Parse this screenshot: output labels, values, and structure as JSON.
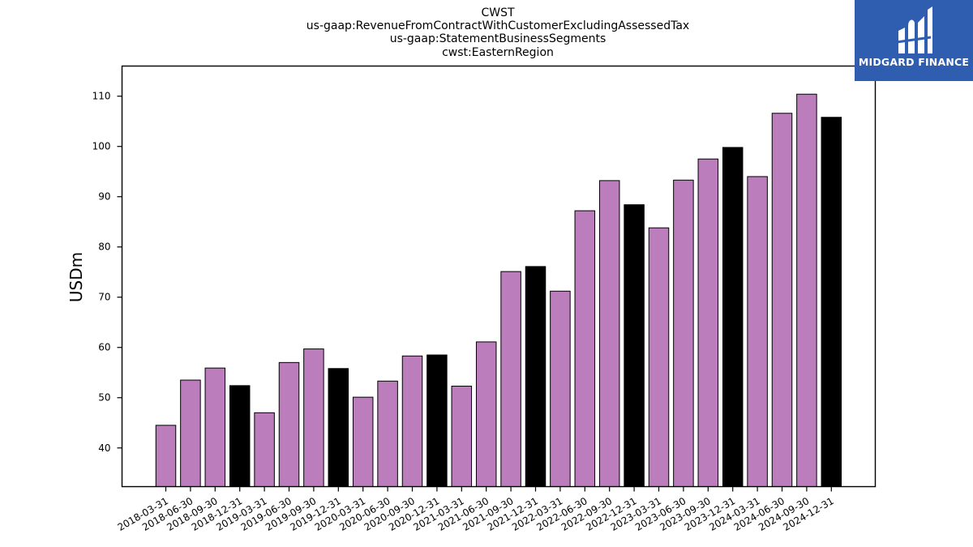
{
  "chart_data": {
    "type": "bar",
    "title_lines": [
      "CWST",
      "us-gaap:RevenueFromContractWithCustomerExcludingAssessedTax",
      "us-gaap:StatementBusinessSegments",
      "cwst:EasternRegion"
    ],
    "xlabel": "",
    "ylabel": "USDm",
    "ylim": [
      32.3,
      116
    ],
    "yticks": [
      40,
      50,
      60,
      70,
      80,
      90,
      100,
      110
    ],
    "grid": false,
    "categories": [
      "2018-03-31",
      "2018-06-30",
      "2018-09-30",
      "2018-12-31",
      "2019-03-31",
      "2019-06-30",
      "2019-09-30",
      "2019-12-31",
      "2020-03-31",
      "2020-06-30",
      "2020-09-30",
      "2020-12-31",
      "2021-03-31",
      "2021-06-30",
      "2021-09-30",
      "2021-12-31",
      "2022-03-31",
      "2022-06-30",
      "2022-09-30",
      "2022-12-31",
      "2023-03-31",
      "2023-06-30",
      "2023-09-30",
      "2023-12-31",
      "2024-03-31",
      "2024-06-30",
      "2024-09-30",
      "2024-12-31"
    ],
    "values": [
      44.5,
      53.5,
      55.9,
      52.4,
      47.0,
      57.0,
      59.7,
      55.8,
      50.1,
      53.3,
      58.3,
      58.5,
      52.3,
      61.1,
      75.1,
      76.1,
      71.2,
      87.2,
      93.2,
      88.4,
      83.8,
      93.3,
      97.5,
      99.8,
      94.0,
      106.6,
      110.4,
      105.8
    ],
    "colors": {
      "quarter": "#bb7dbb",
      "year_end": "#000000",
      "edge": "#000000"
    }
  },
  "logo": {
    "text": "MIDGARD FINANCE",
    "background": "#2f5db0"
  }
}
